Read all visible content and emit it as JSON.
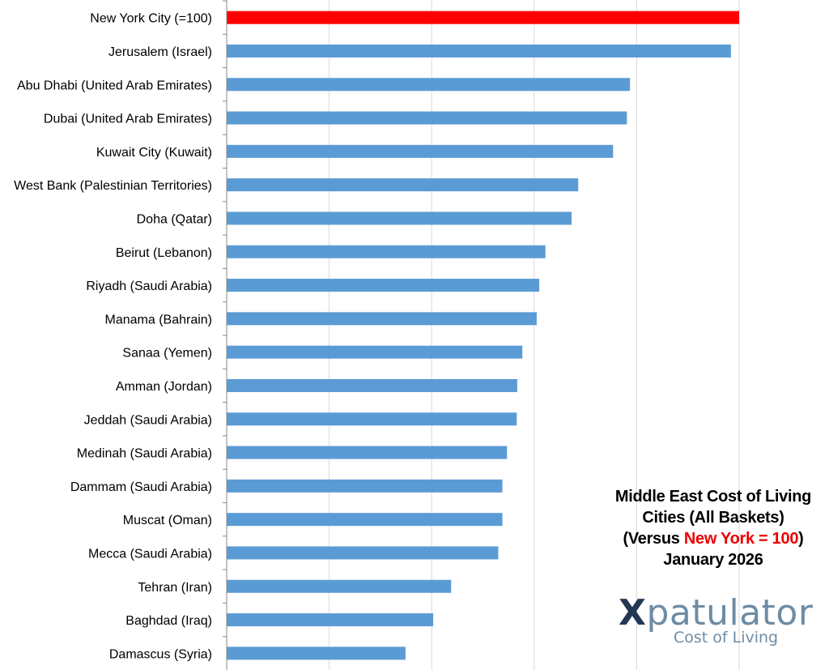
{
  "chart_data": {
    "type": "bar",
    "orientation": "horizontal",
    "categories": [
      "New York City (=100)",
      "Jerusalem (Israel)",
      "Abu Dhabi (United Arab Emirates)",
      "Dubai (United Arab Emirates)",
      "Kuwait City (Kuwait)",
      "West Bank (Palestinian Territories)",
      "Doha (Qatar)",
      "Beirut (Lebanon)",
      "Riyadh (Saudi Arabia)",
      "Manama (Bahrain)",
      "Sanaa (Yemen)",
      "Amman (Jordan)",
      "Jeddah (Saudi Arabia)",
      "Medinah (Saudi Arabia)",
      "Dammam (Saudi Arabia)",
      "Muscat (Oman)",
      "Mecca (Saudi Arabia)",
      "Tehran (Iran)",
      "Baghdad (Iraq)",
      "Damascus (Syria)"
    ],
    "values": [
      100,
      98.4,
      78.7,
      78.1,
      75.4,
      68.6,
      67.3,
      62.2,
      61.0,
      60.5,
      57.7,
      56.7,
      56.6,
      54.7,
      53.8,
      53.8,
      53.0,
      43.8,
      40.3,
      34.9
    ],
    "highlight_index": 0,
    "colors": {
      "highlight": "#ff0000",
      "bar": "#5b9bd5",
      "grid": "#d9d9d9"
    },
    "xlim": [
      0,
      100
    ],
    "x_grid_step": 20,
    "grid": true,
    "title_lines": {
      "line1": "Middle East  Cost of Living",
      "line2": "Cities (All Baskets)",
      "line3_pre": "(Versus ",
      "line3_highlight": "New York = 100",
      "line3_post": ")",
      "line4": "January 2026"
    }
  },
  "logo": {
    "x_letter": "X",
    "word": "patulator",
    "sub": "Cost of Living"
  }
}
